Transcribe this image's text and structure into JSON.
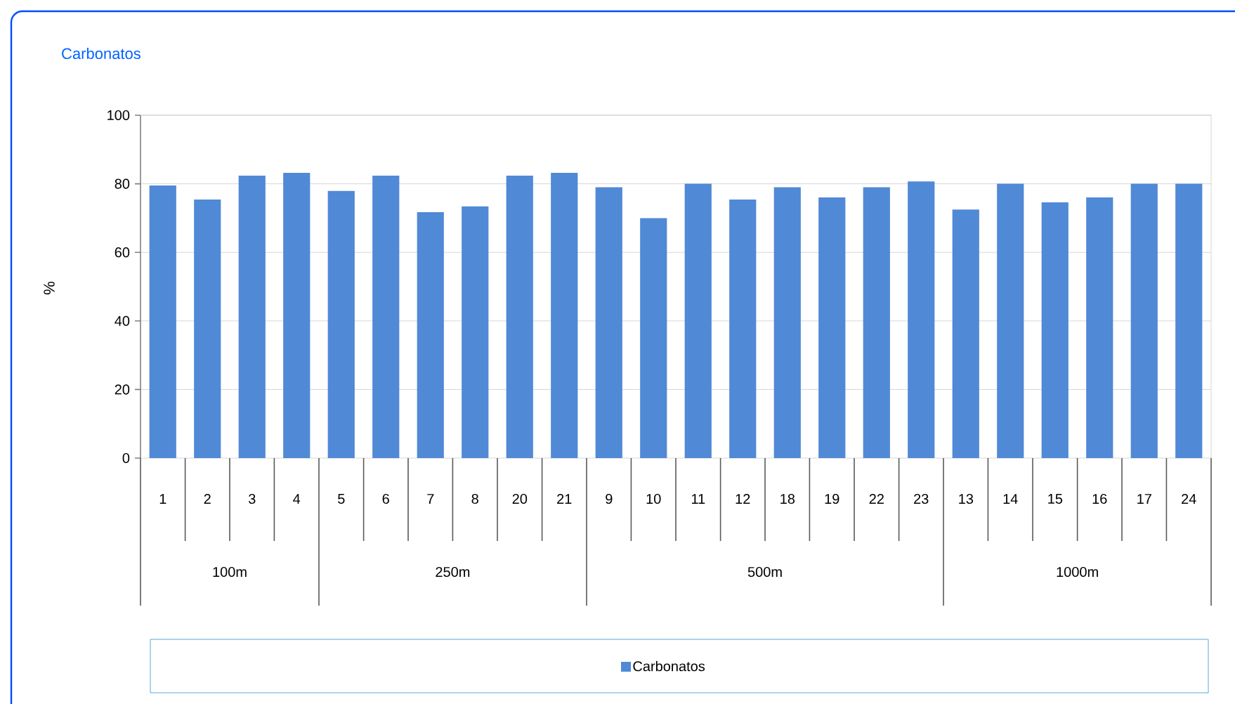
{
  "chart_data": {
    "type": "bar",
    "title": "Carbonatos",
    "ylabel": "%",
    "categories": [
      "1",
      "2",
      "3",
      "4",
      "5",
      "6",
      "7",
      "8",
      "20",
      "21",
      "9",
      "10",
      "11",
      "12",
      "18",
      "19",
      "22",
      "23",
      "13",
      "14",
      "15",
      "16",
      "17",
      "24"
    ],
    "series": [
      {
        "name": "Carbonatos",
        "color": "#5089d6",
        "values": [
          79.5,
          75.4,
          82.4,
          83.2,
          77.9,
          82.4,
          71.7,
          73.4,
          82.4,
          83.2,
          79,
          70,
          80,
          75.4,
          79,
          76,
          79,
          80.7,
          72.5,
          80,
          74.6,
          76,
          80,
          80
        ]
      }
    ],
    "annotations": [
      "100m",
      "250m",
      "500m",
      "1000m"
    ],
    "ylim": [
      0,
      100
    ],
    "yticks": [
      0,
      20,
      40,
      60,
      80,
      100
    ],
    "grid": "y",
    "legend": "bottom"
  }
}
